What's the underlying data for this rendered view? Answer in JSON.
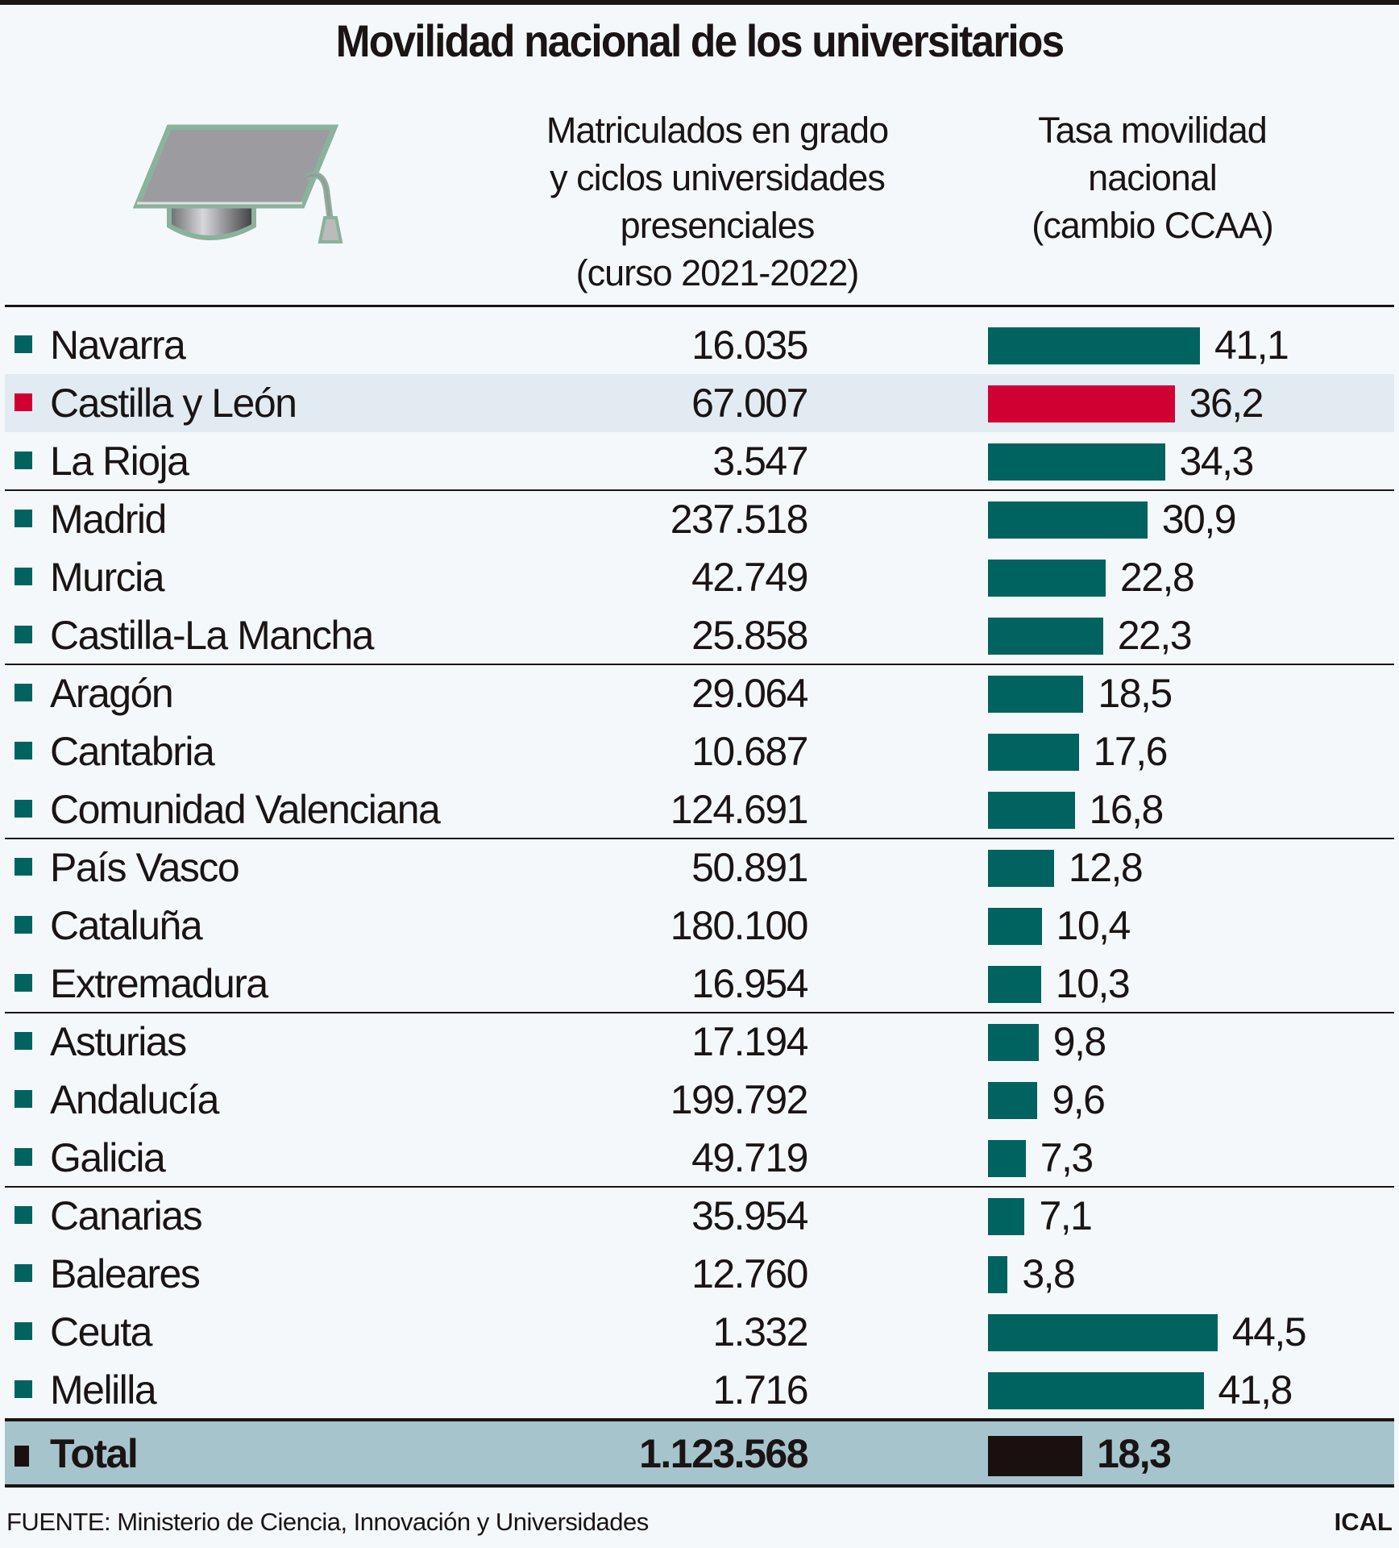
{
  "title": "Movilidad nacional de los universitarios",
  "headers": {
    "enrolled": [
      "Matriculados en grado",
      "y ciclos universidades",
      "presenciales",
      "(curso 2021-2022)"
    ],
    "rate": [
      "Tasa movilidad",
      "nacional",
      "(cambio CCAA)"
    ]
  },
  "icon": "graduation-cap-icon",
  "colors": {
    "bar": "#00635f",
    "highlight": "#d10033",
    "total": "#1a1010",
    "total_band": "#a6c4cb",
    "highlight_row": "#e1ebf1"
  },
  "chart_data": {
    "type": "bar",
    "orientation": "horizontal",
    "categories": [
      "Navarra",
      "Castilla y León",
      "La Rioja",
      "Madrid",
      "Murcia",
      "Castilla-La Mancha",
      "Aragón",
      "Cantabria",
      "Comunidad Valenciana",
      "País Vasco",
      "Cataluña",
      "Extremadura",
      "Asturias",
      "Andalucía",
      "Galicia",
      "Canarias",
      "Baleares",
      "Ceuta",
      "Melilla"
    ],
    "enrolled": [
      "16.035",
      "67.007",
      "3.547",
      "237.518",
      "42.749",
      "25.858",
      "29.064",
      "10.687",
      "124.691",
      "50.891",
      "180.100",
      "16.954",
      "17.194",
      "199.792",
      "49.719",
      "35.954",
      "12.760",
      "1.332",
      "1.716"
    ],
    "values": [
      41.1,
      36.2,
      34.3,
      30.9,
      22.8,
      22.3,
      18.5,
      17.6,
      16.8,
      12.8,
      10.4,
      10.3,
      9.8,
      9.6,
      7.3,
      7.1,
      3.8,
      44.5,
      41.8
    ],
    "value_labels": [
      "41,1",
      "36,2",
      "34,3",
      "30,9",
      "22,8",
      "22,3",
      "18,5",
      "17,6",
      "16,8",
      "12,8",
      "10,4",
      "10,3",
      "9,8",
      "9,6",
      "7,3",
      "7,1",
      "3,8",
      "44,5",
      "41,8"
    ],
    "highlighted": "Castilla y León",
    "total": {
      "label": "Total",
      "enrolled": "1.123.568",
      "value": 18.3,
      "value_label": "18,3"
    }
  },
  "footer": {
    "source": "FUENTE: Ministerio de Ciencia, Innovación y Universidades",
    "brand": "ICAL"
  }
}
